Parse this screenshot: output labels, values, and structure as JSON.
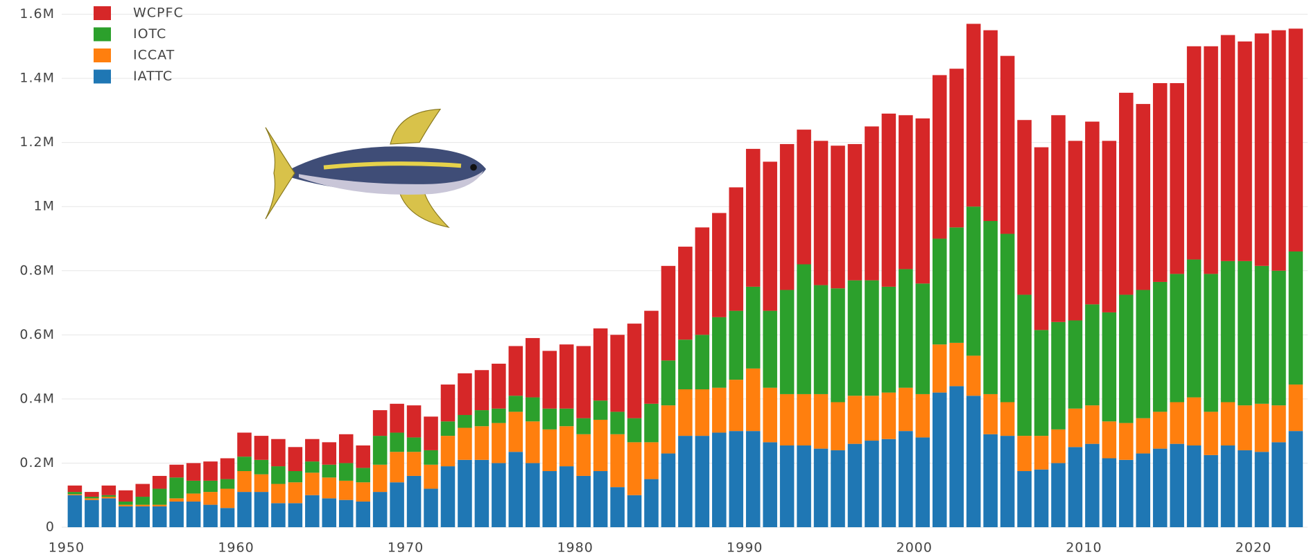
{
  "chart_data": {
    "type": "stacked-bar",
    "x": [
      1950,
      1951,
      1952,
      1953,
      1954,
      1955,
      1956,
      1957,
      1958,
      1959,
      1960,
      1961,
      1962,
      1963,
      1964,
      1965,
      1966,
      1967,
      1968,
      1969,
      1970,
      1971,
      1972,
      1973,
      1974,
      1975,
      1976,
      1977,
      1978,
      1979,
      1980,
      1981,
      1982,
      1983,
      1984,
      1985,
      1986,
      1987,
      1988,
      1989,
      1990,
      1991,
      1992,
      1993,
      1994,
      1995,
      1996,
      1997,
      1998,
      1999,
      2000,
      2001,
      2002,
      2003,
      2004,
      2005,
      2006,
      2007,
      2008,
      2009,
      2010,
      2011,
      2012,
      2013,
      2014,
      2015,
      2016,
      2017,
      2018,
      2019,
      2020,
      2021,
      2022
    ],
    "series": [
      {
        "name": "IATTC",
        "color": "#1f77b4",
        "values": [
          0.1,
          0.085,
          0.09,
          0.065,
          0.065,
          0.065,
          0.08,
          0.08,
          0.07,
          0.06,
          0.11,
          0.11,
          0.075,
          0.075,
          0.1,
          0.09,
          0.085,
          0.08,
          0.11,
          0.14,
          0.16,
          0.12,
          0.19,
          0.21,
          0.21,
          0.2,
          0.235,
          0.2,
          0.175,
          0.19,
          0.16,
          0.175,
          0.125,
          0.1,
          0.15,
          0.23,
          0.285,
          0.285,
          0.295,
          0.3,
          0.3,
          0.265,
          0.255,
          0.255,
          0.245,
          0.24,
          0.26,
          0.27,
          0.275,
          0.3,
          0.28,
          0.42,
          0.44,
          0.41,
          0.29,
          0.285,
          0.175,
          0.18,
          0.2,
          0.25,
          0.26,
          0.215,
          0.21,
          0.23,
          0.245,
          0.26,
          0.255,
          0.225,
          0.255,
          0.24,
          0.235,
          0.265,
          0.3
        ]
      },
      {
        "name": "ICCAT",
        "color": "#ff7f0e",
        "values": [
          0.003,
          0.005,
          0.005,
          0.005,
          0.005,
          0.005,
          0.01,
          0.025,
          0.04,
          0.06,
          0.065,
          0.055,
          0.06,
          0.065,
          0.07,
          0.065,
          0.06,
          0.06,
          0.085,
          0.095,
          0.075,
          0.075,
          0.095,
          0.1,
          0.105,
          0.125,
          0.125,
          0.13,
          0.13,
          0.125,
          0.13,
          0.16,
          0.165,
          0.165,
          0.115,
          0.15,
          0.145,
          0.145,
          0.14,
          0.16,
          0.195,
          0.17,
          0.16,
          0.16,
          0.17,
          0.15,
          0.15,
          0.14,
          0.145,
          0.135,
          0.135,
          0.15,
          0.135,
          0.125,
          0.125,
          0.105,
          0.11,
          0.105,
          0.105,
          0.12,
          0.12,
          0.115,
          0.115,
          0.11,
          0.115,
          0.13,
          0.15,
          0.135,
          0.135,
          0.14,
          0.15,
          0.115,
          0.145
        ]
      },
      {
        "name": "IOTC",
        "color": "#2ca02c",
        "values": [
          0.007,
          0.005,
          0.005,
          0.01,
          0.025,
          0.05,
          0.065,
          0.04,
          0.035,
          0.03,
          0.045,
          0.045,
          0.055,
          0.035,
          0.035,
          0.04,
          0.055,
          0.045,
          0.09,
          0.06,
          0.045,
          0.045,
          0.045,
          0.04,
          0.05,
          0.045,
          0.05,
          0.075,
          0.065,
          0.055,
          0.05,
          0.06,
          0.07,
          0.075,
          0.12,
          0.14,
          0.155,
          0.17,
          0.22,
          0.215,
          0.255,
          0.24,
          0.325,
          0.405,
          0.34,
          0.355,
          0.36,
          0.36,
          0.33,
          0.37,
          0.345,
          0.33,
          0.36,
          0.465,
          0.54,
          0.525,
          0.44,
          0.33,
          0.335,
          0.275,
          0.315,
          0.34,
          0.4,
          0.4,
          0.405,
          0.4,
          0.43,
          0.43,
          0.44,
          0.45,
          0.43,
          0.42,
          0.415
        ]
      },
      {
        "name": "WCPFC",
        "color": "#d62728",
        "values": [
          0.02,
          0.015,
          0.03,
          0.035,
          0.04,
          0.04,
          0.04,
          0.055,
          0.06,
          0.065,
          0.075,
          0.075,
          0.085,
          0.075,
          0.07,
          0.07,
          0.09,
          0.07,
          0.08,
          0.09,
          0.1,
          0.105,
          0.115,
          0.13,
          0.125,
          0.14,
          0.155,
          0.185,
          0.18,
          0.2,
          0.225,
          0.225,
          0.24,
          0.295,
          0.29,
          0.295,
          0.29,
          0.335,
          0.325,
          0.385,
          0.43,
          0.465,
          0.455,
          0.42,
          0.45,
          0.445,
          0.425,
          0.48,
          0.54,
          0.48,
          0.515,
          0.51,
          0.495,
          0.57,
          0.595,
          0.555,
          0.545,
          0.57,
          0.645,
          0.56,
          0.57,
          0.535,
          0.63,
          0.58,
          0.62,
          0.595,
          0.665,
          0.71,
          0.705,
          0.685,
          0.725,
          0.75,
          0.695
        ]
      }
    ],
    "xlim": [
      1948,
      2022.7
    ],
    "xticks": [
      1950,
      1960,
      1970,
      1980,
      1990,
      2000,
      2010,
      2020
    ],
    "ylim": [
      0,
      1.6
    ],
    "yticks": [
      0,
      {
        "value": 0.2,
        "label": "0.2M"
      },
      {
        "value": 0.4,
        "label": "0.4M"
      },
      {
        "value": 0.6,
        "label": "0.6M"
      },
      {
        "value": 0.8,
        "label": "0.8M"
      },
      {
        "value": 1,
        "label": "1M"
      },
      {
        "value": 1.2,
        "label": "1.2M"
      },
      {
        "value": 1.4,
        "label": "1.4M"
      },
      {
        "value": 1.6,
        "label": "1.6M"
      }
    ],
    "grid": true,
    "legend": "top-left"
  }
}
